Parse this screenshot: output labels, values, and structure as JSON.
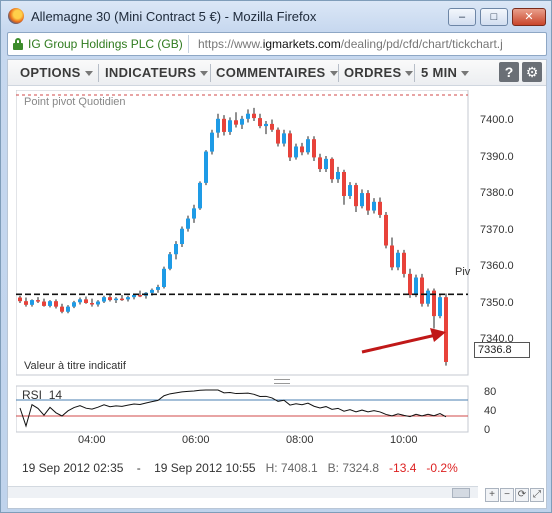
{
  "window": {
    "title": "Allemagne 30 (Mini Contract 5 €) - Mozilla Firefox",
    "minimize_label": "–",
    "maximize_label": "□",
    "close_label": "✕"
  },
  "urlbar": {
    "site_identity": "IG Group Holdings PLC (GB)",
    "url_prefix": "https://www.",
    "url_domain": "igmarkets.com",
    "url_path": "/dealing/pd/cfd/chart/tickchart.j"
  },
  "toolbar": {
    "menus": [
      "OPTIONS",
      "INDICATEURS",
      "COMMENTAIRES",
      "ORDRES",
      "5 MIN"
    ],
    "help_label": "?",
    "settings_label": "⚙"
  },
  "chart": {
    "pivot_label": "Point pivot  Quotidien",
    "pivot_short": "Piv",
    "disclaimer": "Valeur à titre indicatif",
    "current_price": "7336.8",
    "price_ticks": [
      "7400.0",
      "7390.0",
      "7380.0",
      "7370.0",
      "7360.0",
      "7350.0",
      "7340.0"
    ],
    "time_ticks": [
      "04:00",
      "06:00",
      "08:00",
      "10:00"
    ],
    "rsi_label": "RSI",
    "rsi_period": "14",
    "rsi_ticks": [
      "80",
      "40",
      "0"
    ],
    "colors": {
      "up": "#1e9be6",
      "down": "#e8423a",
      "pivot": "#111111",
      "resistance": "#d04a4a",
      "arrow": "#c01818"
    }
  },
  "chart_data": {
    "type": "candlestick",
    "xlabel": "",
    "ylabel": "",
    "ylim": [
      7330,
      7405
    ],
    "pivot": 7355.4,
    "candles": [
      [
        7354.5,
        7355.0,
        7353.0,
        7353.5
      ],
      [
        7353.5,
        7354.5,
        7352.0,
        7352.5
      ],
      [
        7352.5,
        7354.0,
        7352.0,
        7353.8
      ],
      [
        7353.8,
        7354.6,
        7353.0,
        7353.4
      ],
      [
        7353.4,
        7354.2,
        7352.0,
        7352.2
      ],
      [
        7352.2,
        7353.8,
        7351.8,
        7353.5
      ],
      [
        7353.5,
        7354.0,
        7351.5,
        7352.0
      ],
      [
        7352.0,
        7352.8,
        7350.2,
        7350.6
      ],
      [
        7350.6,
        7352.4,
        7350.2,
        7352.0
      ],
      [
        7352.0,
        7353.6,
        7351.6,
        7353.2
      ],
      [
        7353.2,
        7354.5,
        7352.6,
        7354.0
      ],
      [
        7354.0,
        7354.8,
        7352.8,
        7353.0
      ],
      [
        7353.0,
        7354.2,
        7352.0,
        7352.6
      ],
      [
        7352.6,
        7353.8,
        7352.0,
        7353.4
      ],
      [
        7353.4,
        7355.0,
        7353.0,
        7354.6
      ],
      [
        7354.6,
        7355.6,
        7353.4,
        7353.8
      ],
      [
        7353.8,
        7354.6,
        7353.0,
        7354.2
      ],
      [
        7354.2,
        7355.2,
        7353.6,
        7354.0
      ],
      [
        7354.0,
        7355.0,
        7353.4,
        7354.6
      ],
      [
        7354.6,
        7355.6,
        7354.0,
        7355.2
      ],
      [
        7355.2,
        7356.4,
        7354.6,
        7355.0
      ],
      [
        7355.0,
        7356.0,
        7354.2,
        7355.8
      ],
      [
        7355.8,
        7357.0,
        7355.0,
        7356.6
      ],
      [
        7356.6,
        7358.0,
        7355.8,
        7357.4
      ],
      [
        7357.4,
        7363.0,
        7357.0,
        7362.4
      ],
      [
        7362.4,
        7367.0,
        7362.0,
        7366.4
      ],
      [
        7366.4,
        7370.0,
        7365.0,
        7369.2
      ],
      [
        7369.2,
        7374.0,
        7368.4,
        7373.4
      ],
      [
        7373.4,
        7377.0,
        7372.6,
        7376.2
      ],
      [
        7376.2,
        7380.0,
        7375.0,
        7379.0
      ],
      [
        7379.0,
        7386.4,
        7378.6,
        7386.0
      ],
      [
        7386.0,
        7395.0,
        7385.4,
        7394.6
      ],
      [
        7394.6,
        7400.6,
        7393.8,
        7399.8
      ],
      [
        7399.8,
        7405.0,
        7398.4,
        7403.6
      ],
      [
        7403.6,
        7404.6,
        7399.0,
        7400.0
      ],
      [
        7400.0,
        7404.0,
        7399.2,
        7403.2
      ],
      [
        7403.2,
        7405.4,
        7401.2,
        7402.0
      ],
      [
        7402.0,
        7404.4,
        7400.8,
        7403.6
      ],
      [
        7403.6,
        7406.2,
        7402.6,
        7405.0
      ],
      [
        7405.0,
        7406.6,
        7403.0,
        7403.8
      ],
      [
        7403.8,
        7405.0,
        7401.0,
        7401.6
      ],
      [
        7401.6,
        7403.0,
        7399.4,
        7402.2
      ],
      [
        7402.2,
        7403.4,
        7400.0,
        7400.6
      ],
      [
        7400.6,
        7401.2,
        7396.0,
        7396.8
      ],
      [
        7396.8,
        7400.6,
        7396.0,
        7399.6
      ],
      [
        7399.6,
        7400.4,
        7392.0,
        7393.0
      ],
      [
        7393.0,
        7396.8,
        7392.4,
        7396.0
      ],
      [
        7396.0,
        7397.0,
        7393.6,
        7394.4
      ],
      [
        7394.4,
        7398.8,
        7393.8,
        7398.0
      ],
      [
        7398.0,
        7398.8,
        7392.0,
        7393.0
      ],
      [
        7393.0,
        7394.0,
        7389.0,
        7389.8
      ],
      [
        7389.8,
        7393.4,
        7389.0,
        7392.6
      ],
      [
        7392.6,
        7393.0,
        7386.0,
        7387.0
      ],
      [
        7387.0,
        7390.4,
        7386.0,
        7389.0
      ],
      [
        7389.0,
        7389.6,
        7380.0,
        7382.4
      ],
      [
        7382.4,
        7386.2,
        7381.6,
        7385.4
      ],
      [
        7385.4,
        7386.0,
        7378.0,
        7379.6
      ],
      [
        7379.6,
        7384.2,
        7379.0,
        7383.2
      ],
      [
        7383.2,
        7384.0,
        7377.2,
        7378.4
      ],
      [
        7378.4,
        7381.8,
        7377.6,
        7380.8
      ],
      [
        7380.8,
        7382.0,
        7376.4,
        7377.2
      ],
      [
        7377.2,
        7378.0,
        7368.0,
        7368.8
      ],
      [
        7368.8,
        7371.0,
        7362.0,
        7362.8
      ],
      [
        7362.8,
        7367.6,
        7362.0,
        7366.8
      ],
      [
        7366.8,
        7367.6,
        7360.0,
        7361.0
      ],
      [
        7361.0,
        7362.4,
        7354.4,
        7355.2
      ],
      [
        7355.2,
        7360.8,
        7354.6,
        7360.0
      ],
      [
        7360.0,
        7361.0,
        7352.0,
        7352.8
      ],
      [
        7352.8,
        7357.0,
        7352.0,
        7356.4
      ],
      [
        7356.4,
        7357.0,
        7346.0,
        7349.4
      ],
      [
        7349.4,
        7355.4,
        7348.8,
        7354.6
      ],
      [
        7354.6,
        7355.6,
        7335.8,
        7336.8
      ]
    ]
  },
  "status": {
    "start_date": "19 Sep 2012 02:35",
    "dash": "-",
    "end_date": "19 Sep 2012 10:55",
    "high": "H: 7408.1",
    "low": "B: 7324.8",
    "change": "-13.4",
    "change_pct": "-0.2%"
  },
  "nav": [
    "+",
    "−",
    "⟳",
    "⤢"
  ]
}
